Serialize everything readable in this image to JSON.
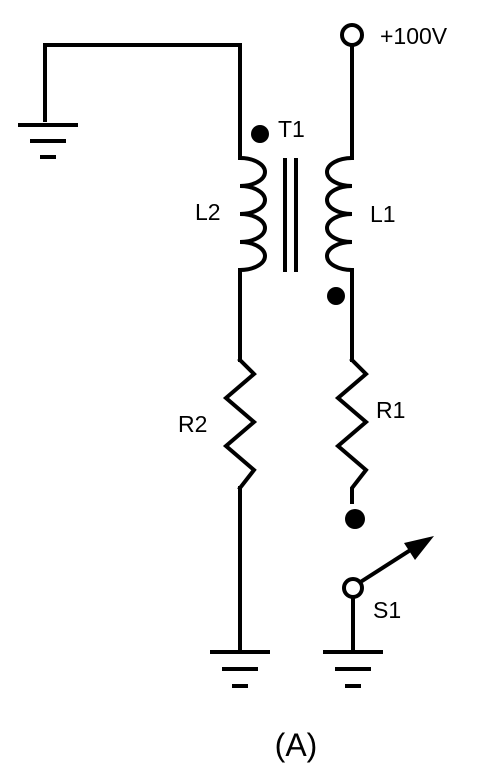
{
  "figure": {
    "caption": "(A)"
  },
  "components": {
    "supply": {
      "label": "+100V"
    },
    "transformer": {
      "label": "T1"
    },
    "primary_winding": {
      "label": "L1"
    },
    "secondary_winding": {
      "label": "L2"
    },
    "resistor_primary": {
      "label": "R1"
    },
    "resistor_secondary": {
      "label": "R2"
    },
    "switch": {
      "label": "S1"
    }
  },
  "colors": {
    "ink": "#000000",
    "paper": "#ffffff"
  }
}
